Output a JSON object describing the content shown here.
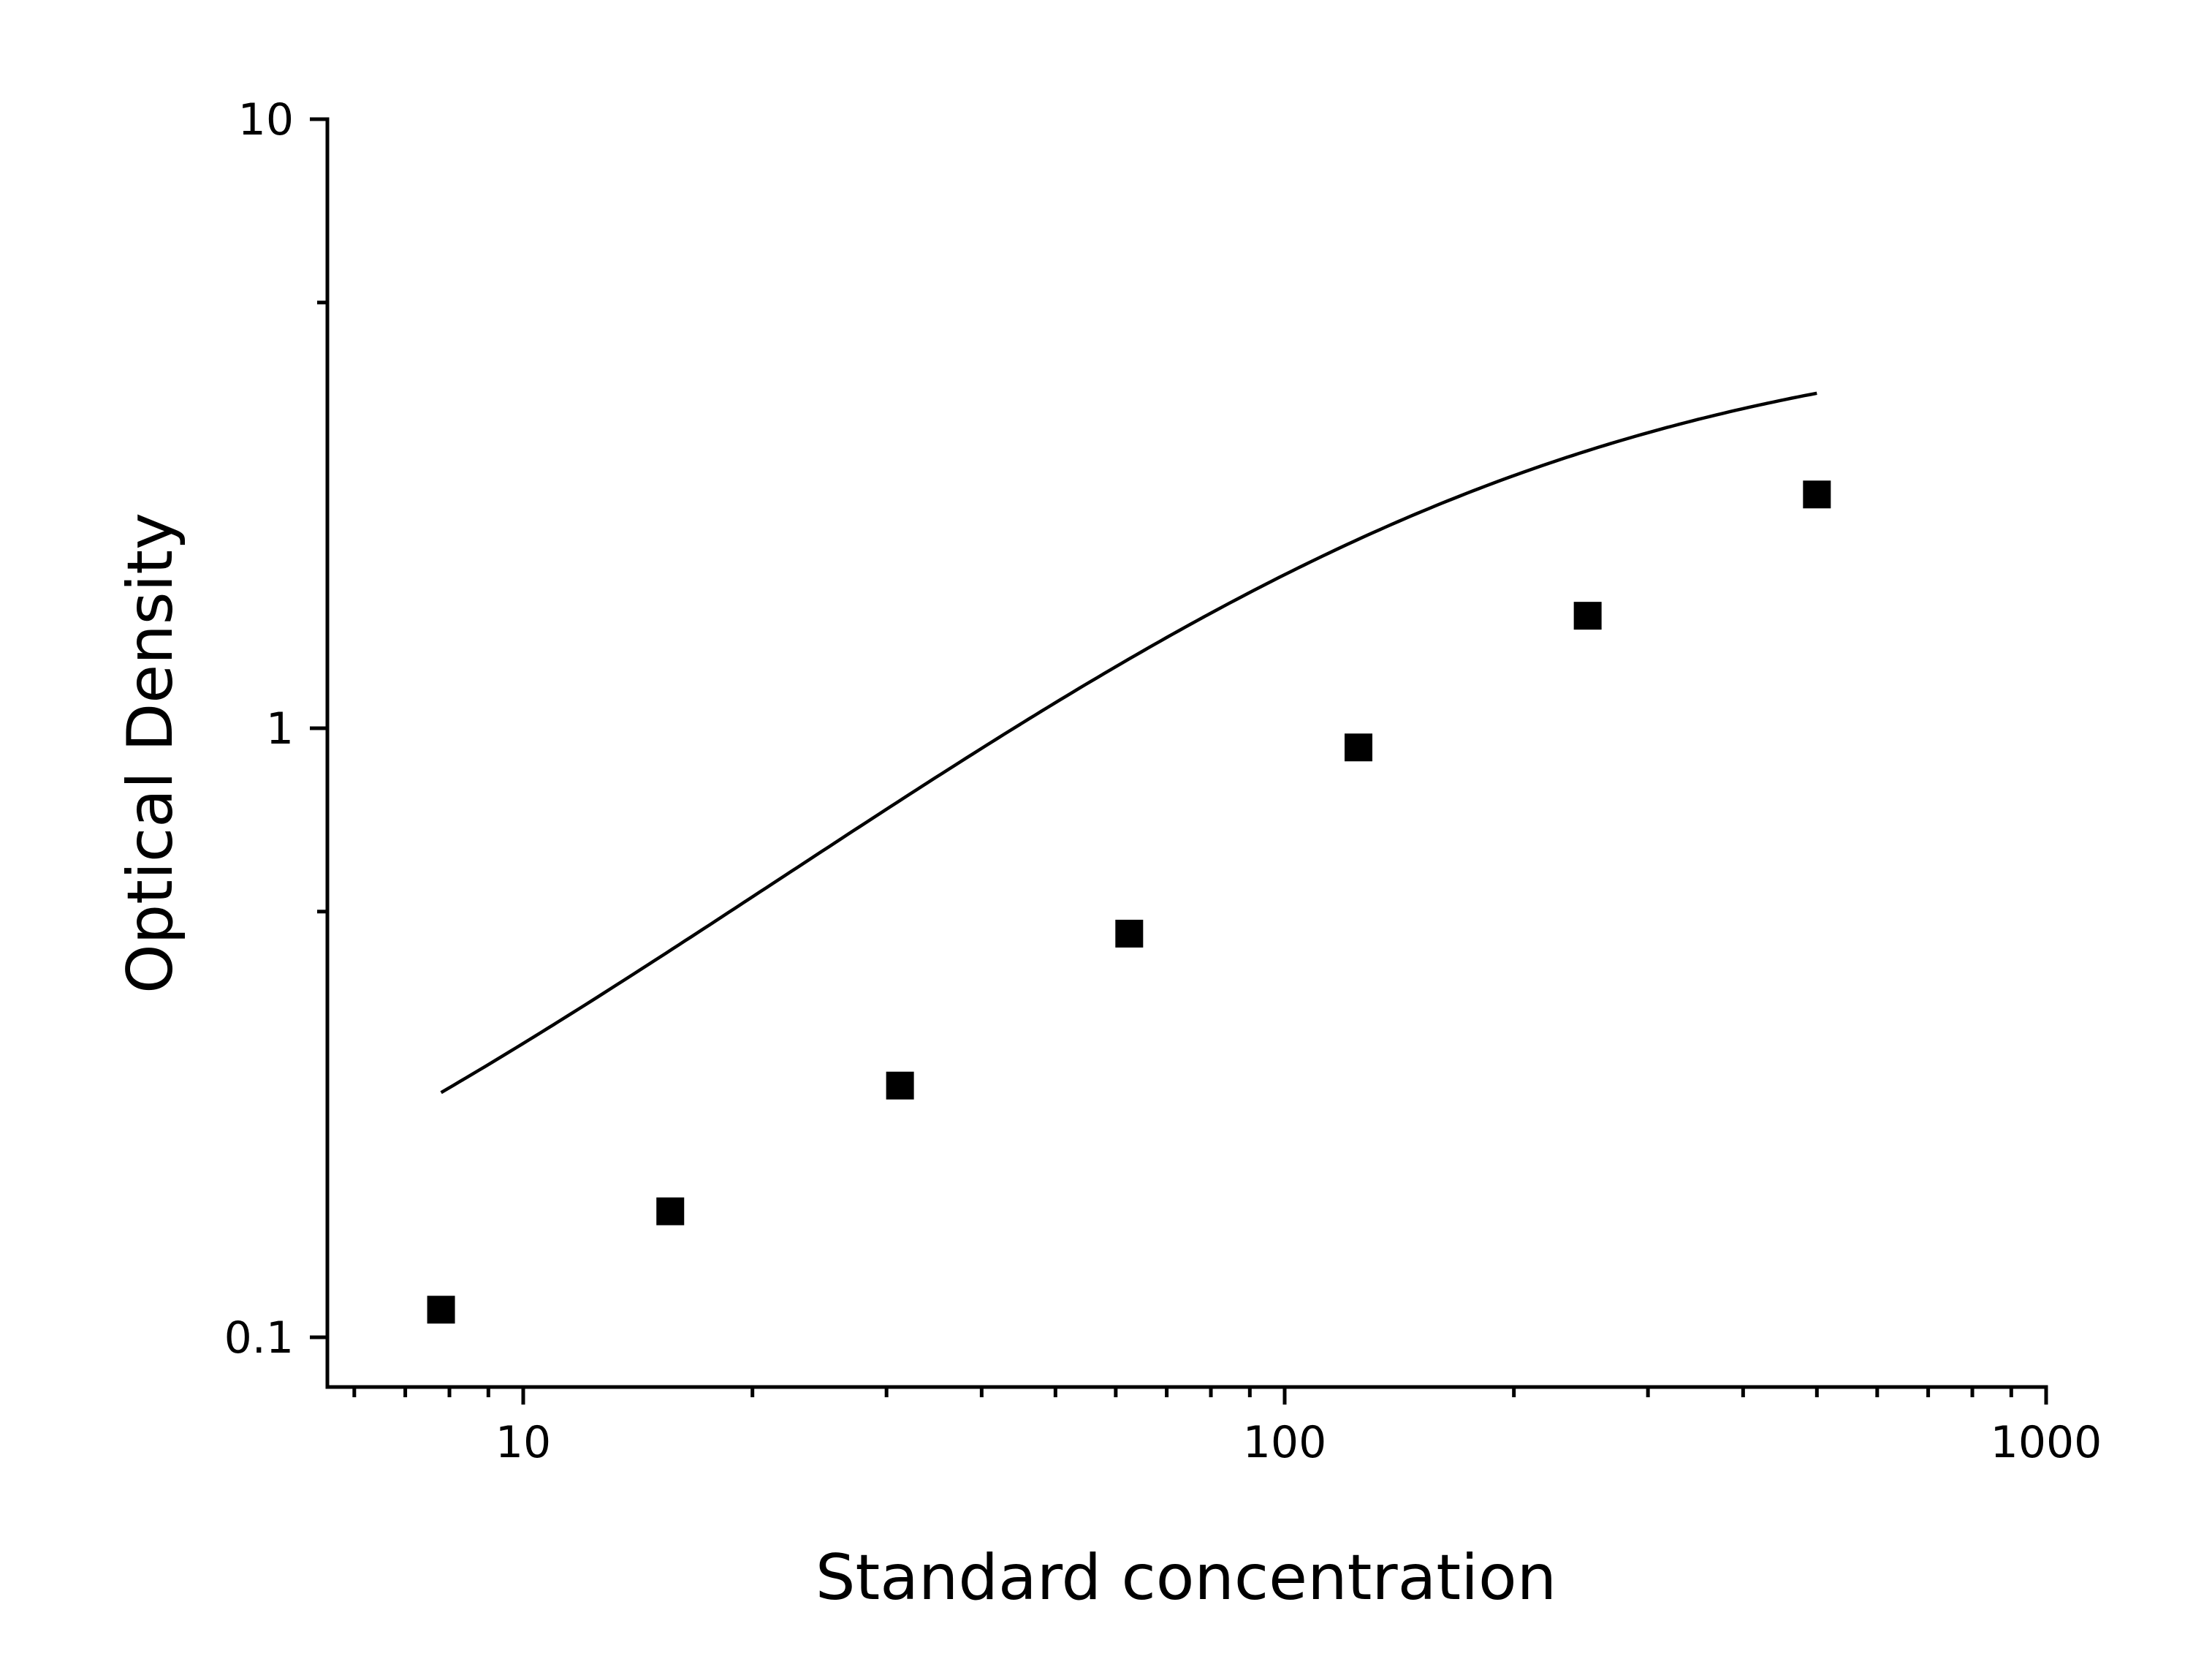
{
  "chart_data": {
    "type": "scatter",
    "title": "",
    "xlabel": "Standard concentration",
    "ylabel": "Optical Density",
    "x_scale": "log",
    "y_scale": "log",
    "xlim": [
      5.6,
      1000
    ],
    "ylim": [
      0.083,
      10
    ],
    "x_ticks": [
      {
        "value": 10,
        "label": "10"
      },
      {
        "value": 100,
        "label": "100"
      },
      {
        "value": 1000,
        "label": "1000"
      }
    ],
    "y_ticks": [
      {
        "value": 0.1,
        "label": "0.1"
      },
      {
        "value": 1,
        "label": "1"
      },
      {
        "value": 10,
        "label": "10"
      }
    ],
    "grid": false,
    "legend": "none",
    "series": [
      {
        "marker": "square",
        "color": "#000000",
        "x": [
          7.8,
          15.6,
          31.25,
          62.5,
          125,
          250,
          500
        ],
        "y": [
          0.111,
          0.161,
          0.259,
          0.46,
          0.93,
          1.53,
          2.42
        ]
      }
    ],
    "fit_curve": {
      "type": "4PL",
      "color": "#000000"
    }
  }
}
